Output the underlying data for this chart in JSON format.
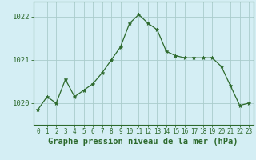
{
  "x": [
    0,
    1,
    2,
    3,
    4,
    5,
    6,
    7,
    8,
    9,
    10,
    11,
    12,
    13,
    14,
    15,
    16,
    17,
    18,
    19,
    20,
    21,
    22,
    23
  ],
  "y": [
    1019.85,
    1020.15,
    1020.0,
    1020.55,
    1020.15,
    1020.3,
    1020.45,
    1020.7,
    1021.0,
    1021.3,
    1021.85,
    1022.05,
    1021.85,
    1021.7,
    1021.2,
    1021.1,
    1021.05,
    1021.05,
    1021.05,
    1021.05,
    1020.85,
    1020.4,
    1019.95,
    1020.0
  ],
  "line_color": "#2d6a2d",
  "marker": "*",
  "marker_size": 3.5,
  "background_color": "#d4eef4",
  "grid_color": "#aacccc",
  "xlabel": "Graphe pression niveau de la mer (hPa)",
  "xlabel_fontsize": 7.5,
  "ytick_labels": [
    "1020",
    "1021",
    "1022"
  ],
  "ytick_values": [
    1020,
    1021,
    1022
  ],
  "ylim": [
    1019.5,
    1022.35
  ],
  "xlim": [
    -0.5,
    23.5
  ],
  "xtick_labels": [
    "0",
    "1",
    "2",
    "3",
    "4",
    "5",
    "6",
    "7",
    "8",
    "9",
    "10",
    "11",
    "12",
    "13",
    "14",
    "15",
    "16",
    "17",
    "18",
    "19",
    "20",
    "21",
    "22",
    "23"
  ],
  "tick_fontsize": 5.5,
  "ytick_fontsize": 6.5
}
